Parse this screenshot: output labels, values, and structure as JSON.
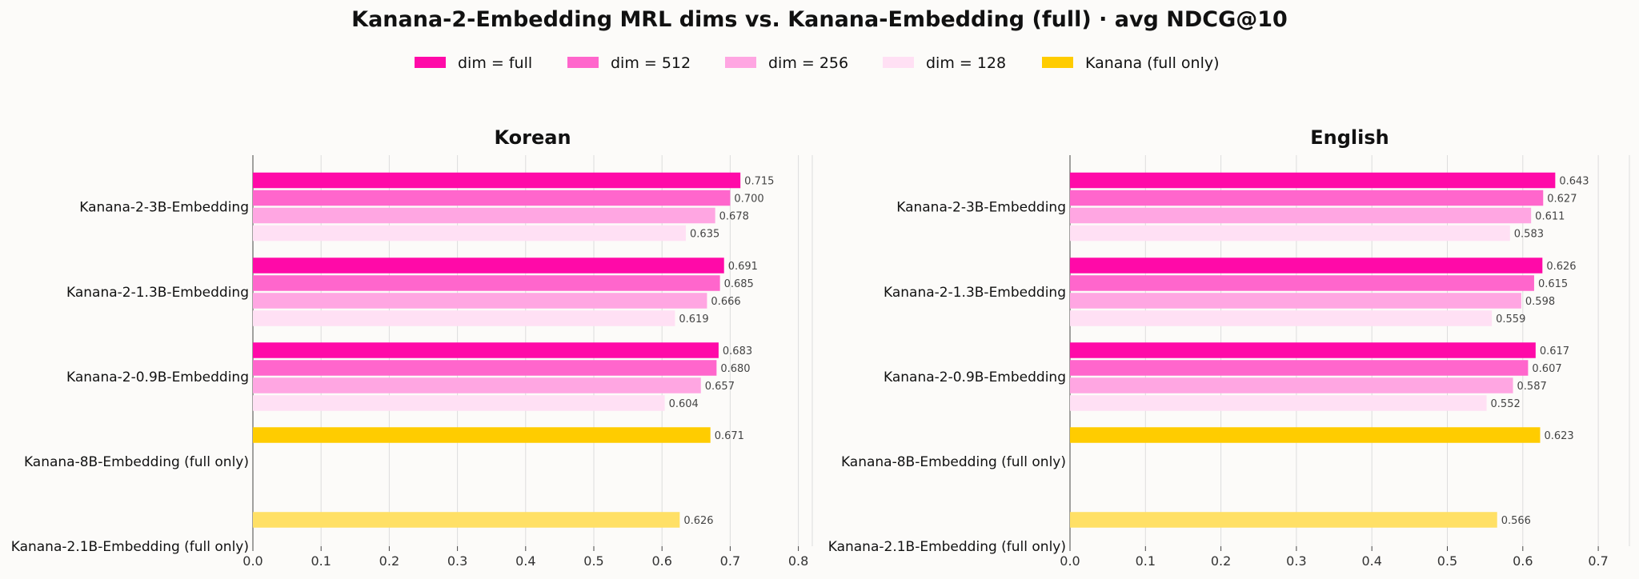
{
  "title": "Kanana-2-Embedding MRL dims vs. Kanana-Embedding (full) · avg NDCG@10",
  "legend": [
    {
      "label": "dim = full",
      "color": "#ff0aa8"
    },
    {
      "label": "dim = 512",
      "color": "#ff66cc"
    },
    {
      "label": "dim = 256",
      "color": "#ffa6e2"
    },
    {
      "label": "dim = 128",
      "color": "#ffe0f4"
    },
    {
      "label": "Kanana (full only)",
      "color": "#ffcc00"
    }
  ],
  "colors": {
    "full": "#ff0aa8",
    "d512": "#ff66cc",
    "d256": "#ffa6e2",
    "d128": "#ffe0f4",
    "kanana8b": "#ffcc00",
    "kanana21b": "#ffe066",
    "grid": "#dddddd",
    "value_label": "#444444"
  },
  "chart_data": [
    {
      "type": "bar",
      "orientation": "horizontal",
      "title": "Korean",
      "xlim": [
        0,
        0.82
      ],
      "xticks": [
        "0.0",
        "0.1",
        "0.2",
        "0.3",
        "0.4",
        "0.5",
        "0.6",
        "0.7",
        "0.8"
      ],
      "grid": true,
      "categories": [
        "Kanana-2-3B-Embedding",
        "Kanana-2-1.3B-Embedding",
        "Kanana-2-0.9B-Embedding",
        "Kanana-8B-Embedding (full only)",
        "Kanana-2.1B-Embedding (full only)"
      ],
      "series": [
        {
          "name": "dim = full",
          "values": [
            0.715,
            0.691,
            0.683,
            null,
            null
          ]
        },
        {
          "name": "dim = 512",
          "values": [
            0.7,
            0.685,
            0.68,
            null,
            null
          ]
        },
        {
          "name": "dim = 256",
          "values": [
            0.678,
            0.666,
            0.657,
            null,
            null
          ]
        },
        {
          "name": "dim = 128",
          "values": [
            0.635,
            0.619,
            0.604,
            null,
            null
          ]
        },
        {
          "name": "Kanana (full only)",
          "values": [
            null,
            null,
            null,
            0.671,
            0.626
          ]
        }
      ],
      "value_labels": [
        [
          "0.715",
          "0.700",
          "0.678",
          "0.635"
        ],
        [
          "0.691",
          "0.685",
          "0.666",
          "0.619"
        ],
        [
          "0.683",
          "0.680",
          "0.657",
          "0.604"
        ],
        [
          "0.671"
        ],
        [
          "0.626"
        ]
      ]
    },
    {
      "type": "bar",
      "orientation": "horizontal",
      "title": "English",
      "xlim": [
        0,
        0.74
      ],
      "xticks": [
        "0.0",
        "0.1",
        "0.2",
        "0.3",
        "0.4",
        "0.5",
        "0.6",
        "0.7"
      ],
      "grid": true,
      "categories": [
        "Kanana-2-3B-Embedding",
        "Kanana-2-1.3B-Embedding",
        "Kanana-2-0.9B-Embedding",
        "Kanana-8B-Embedding (full only)",
        "Kanana-2.1B-Embedding (full only)"
      ],
      "series": [
        {
          "name": "dim = full",
          "values": [
            0.643,
            0.626,
            0.617,
            null,
            null
          ]
        },
        {
          "name": "dim = 512",
          "values": [
            0.627,
            0.615,
            0.607,
            null,
            null
          ]
        },
        {
          "name": "dim = 256",
          "values": [
            0.611,
            0.598,
            0.587,
            null,
            null
          ]
        },
        {
          "name": "dim = 128",
          "values": [
            0.583,
            0.559,
            0.552,
            null,
            null
          ]
        },
        {
          "name": "Kanana (full only)",
          "values": [
            null,
            null,
            null,
            0.623,
            0.566
          ]
        }
      ],
      "value_labels": [
        [
          "0.643",
          "0.627",
          "0.611",
          "0.583"
        ],
        [
          "0.626",
          "0.615",
          "0.598",
          "0.559"
        ],
        [
          "0.617",
          "0.607",
          "0.587",
          "0.552"
        ],
        [
          "0.623"
        ],
        [
          "0.566"
        ]
      ]
    }
  ]
}
